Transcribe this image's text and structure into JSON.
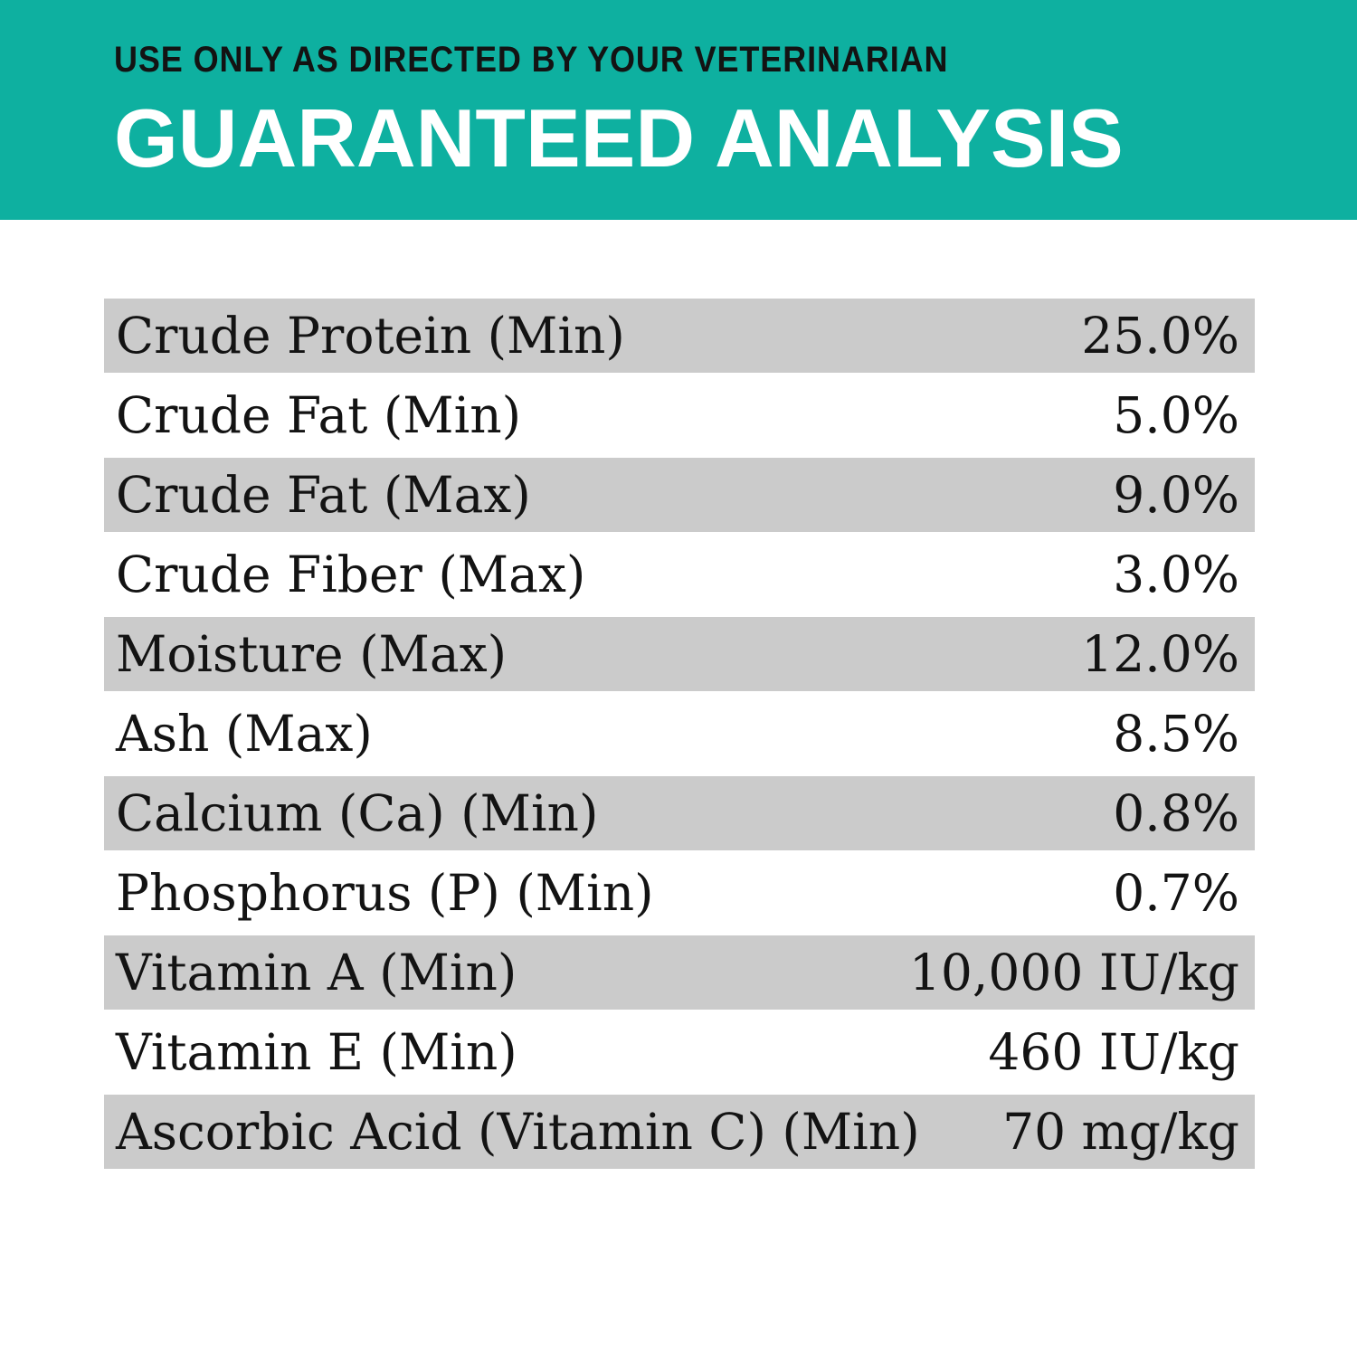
{
  "header": {
    "eyebrow": "USE ONLY AS DIRECTED BY YOUR VETERINARIAN",
    "title": "GUARANTEED ANALYSIS",
    "background_color": "#0eb0a0",
    "eyebrow_color": "#131313",
    "title_color": "#ffffff"
  },
  "table": {
    "stripe_color": "#cbcbcb",
    "text_color": "#131313",
    "rows": [
      {
        "label": "Crude Protein (Min)",
        "value": "25.0%"
      },
      {
        "label": "Crude Fat (Min)",
        "value": "5.0%"
      },
      {
        "label": "Crude Fat (Max)",
        "value": "9.0%"
      },
      {
        "label": "Crude Fiber (Max)",
        "value": "3.0%"
      },
      {
        "label": "Moisture (Max)",
        "value": "12.0%"
      },
      {
        "label": "Ash (Max)",
        "value": "8.5%"
      },
      {
        "label": "Calcium (Ca) (Min)",
        "value": "0.8%"
      },
      {
        "label": "Phosphorus (P) (Min)",
        "value": "0.7%"
      },
      {
        "label": "Vitamin A (Min)",
        "value": "10,000 IU/kg"
      },
      {
        "label": "Vitamin E (Min)",
        "value": "460 IU/kg"
      },
      {
        "label": "Ascorbic Acid (Vitamin C) (Min)",
        "value": "70 mg/kg"
      }
    ]
  }
}
